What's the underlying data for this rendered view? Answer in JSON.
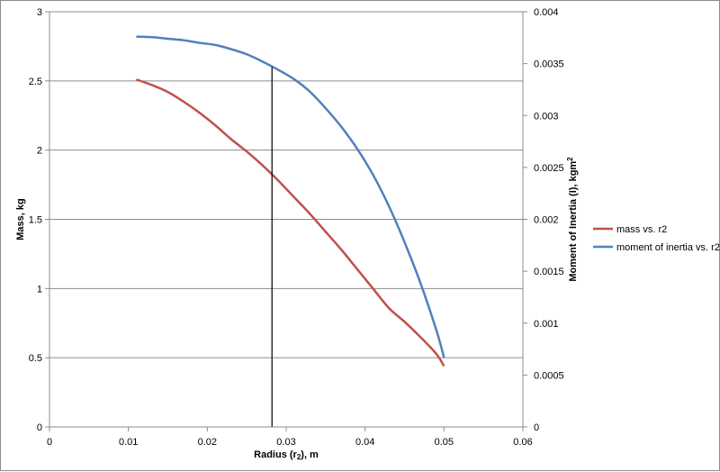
{
  "chart_data": {
    "type": "line",
    "xlabel_main": "Radius (r",
    "xlabel_sub": "2",
    "xlabel_tail": "), m",
    "ylabel": "Mass, kg",
    "y2label_main": "Moment of Inertia (I), kgm",
    "y2label_sup": "2",
    "xlim": [
      0,
      0.06
    ],
    "ylim": [
      0,
      3
    ],
    "y2lim": [
      0,
      0.004
    ],
    "x_ticks": [
      "0",
      "0.01",
      "0.02",
      "0.03",
      "0.04",
      "0.05",
      "0.06"
    ],
    "y_ticks": [
      "0",
      "0.5",
      "1",
      "1.5",
      "2",
      "2.5",
      "3"
    ],
    "y2_ticks": [
      "0",
      "0.0005",
      "0.001",
      "0.0015",
      "0.002",
      "0.0025",
      "0.003",
      "0.0035",
      "0.004"
    ],
    "grid": true,
    "legend_position": "right",
    "series": [
      {
        "name": "mass vs. r2",
        "axis": "left",
        "color": "#c0504d",
        "points": [
          [
            0.011,
            2.51
          ],
          [
            0.013,
            2.47
          ],
          [
            0.015,
            2.42
          ],
          [
            0.017,
            2.35
          ],
          [
            0.019,
            2.27
          ],
          [
            0.021,
            2.18
          ],
          [
            0.023,
            2.08
          ],
          [
            0.025,
            1.99
          ],
          [
            0.027,
            1.89
          ],
          [
            0.029,
            1.78
          ],
          [
            0.031,
            1.66
          ],
          [
            0.033,
            1.54
          ],
          [
            0.035,
            1.41
          ],
          [
            0.037,
            1.28
          ],
          [
            0.039,
            1.14
          ],
          [
            0.041,
            1.0
          ],
          [
            0.043,
            0.86
          ],
          [
            0.045,
            0.76
          ],
          [
            0.047,
            0.65
          ],
          [
            0.049,
            0.53
          ],
          [
            0.05,
            0.44
          ]
        ]
      },
      {
        "name": "moment of inertia vs. r2",
        "axis": "right",
        "color": "#4f81bd",
        "points": [
          [
            0.011,
            0.00376
          ],
          [
            0.013,
            0.003755
          ],
          [
            0.015,
            0.00374
          ],
          [
            0.017,
            0.003725
          ],
          [
            0.019,
            0.0037
          ],
          [
            0.021,
            0.00368
          ],
          [
            0.023,
            0.00364
          ],
          [
            0.025,
            0.00359
          ],
          [
            0.027,
            0.00352
          ],
          [
            0.029,
            0.00344
          ],
          [
            0.031,
            0.00335
          ],
          [
            0.033,
            0.00323
          ],
          [
            0.035,
            0.00307
          ],
          [
            0.037,
            0.00289
          ],
          [
            0.039,
            0.00268
          ],
          [
            0.041,
            0.00243
          ],
          [
            0.043,
            0.00213
          ],
          [
            0.045,
            0.00178
          ],
          [
            0.047,
            0.00139
          ],
          [
            0.049,
            0.00094
          ],
          [
            0.05,
            0.00067
          ]
        ]
      }
    ],
    "marker_line": {
      "x": 0.0282,
      "y_top": 2.6,
      "color": "#000000"
    }
  }
}
